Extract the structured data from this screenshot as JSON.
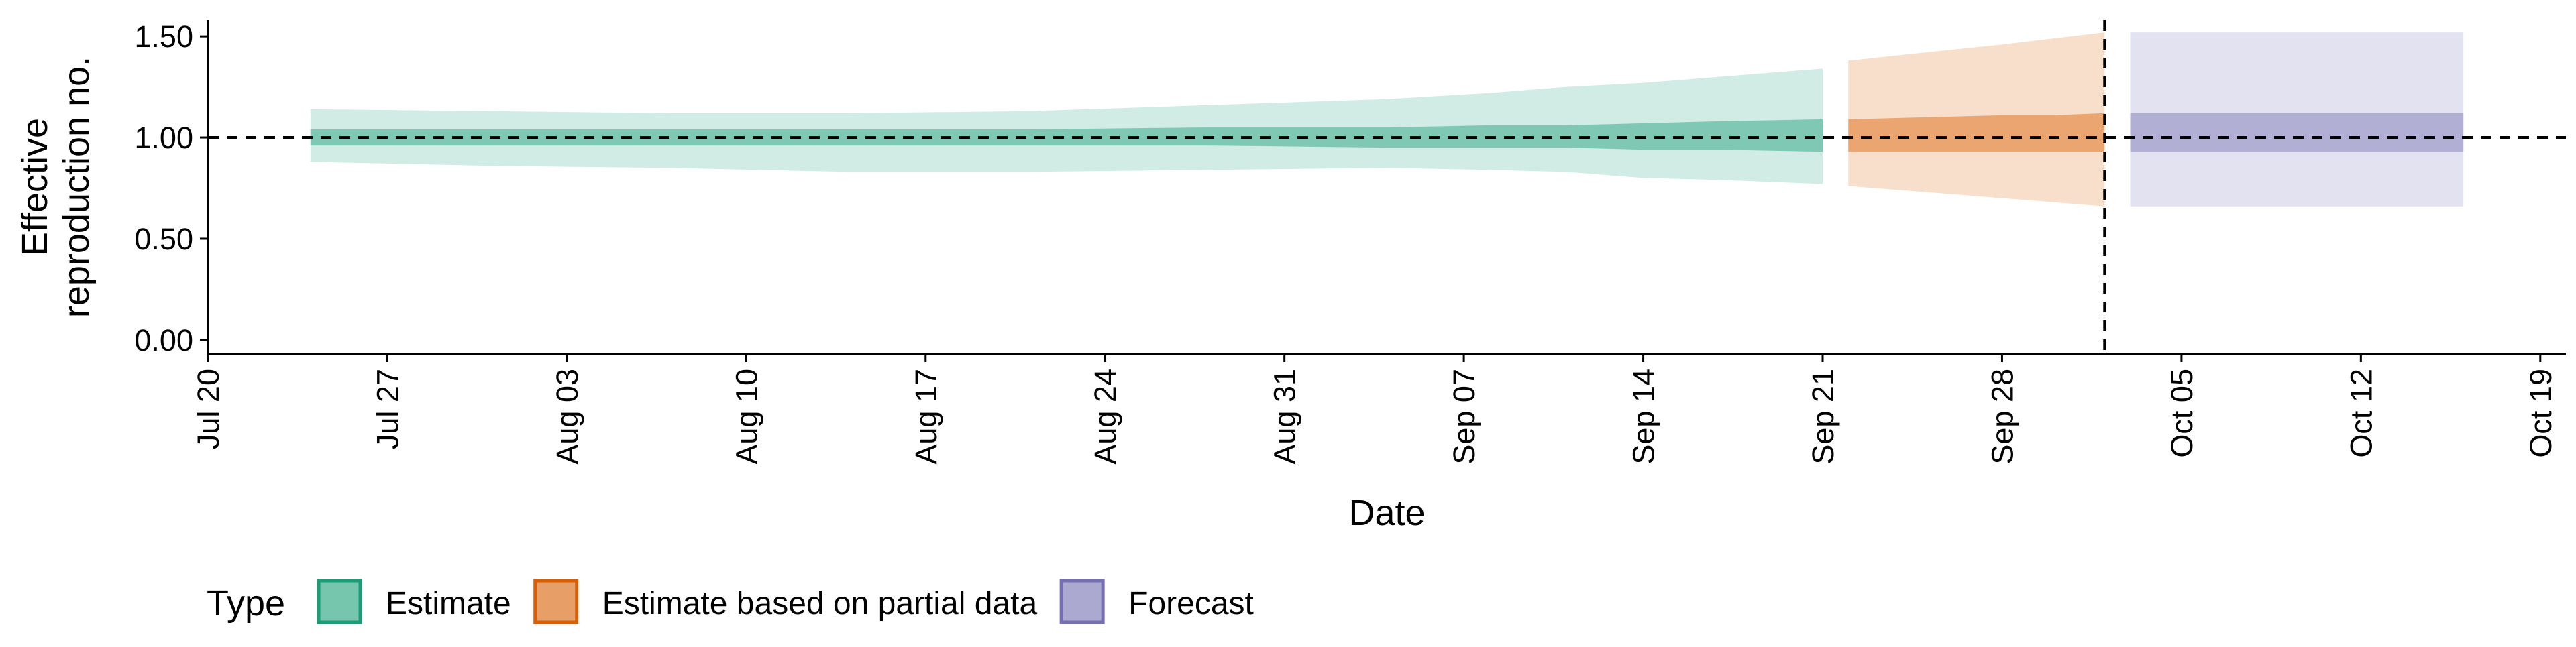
{
  "chart_data": {
    "type": "area",
    "title": "",
    "xlabel": "Date",
    "ylabel_lines": [
      "Effective",
      "reproduction no."
    ],
    "legend_title": "Type",
    "legend_position": "bottom-left",
    "grid": false,
    "x_ticks": [
      "2020-07-20",
      "2020-07-27",
      "2020-08-03",
      "2020-08-10",
      "2020-08-17",
      "2020-08-24",
      "2020-08-31",
      "2020-09-07",
      "2020-09-14",
      "2020-09-21",
      "2020-09-28",
      "2020-10-05",
      "2020-10-12",
      "2020-10-19"
    ],
    "x_tick_labels": [
      "Jul 20",
      "Jul 27",
      "Aug 03",
      "Aug 10",
      "Aug 17",
      "Aug 24",
      "Aug 31",
      "Sep 07",
      "Sep 14",
      "Sep 21",
      "Sep 28",
      "Oct 05",
      "Oct 12",
      "Oct 19"
    ],
    "xlim": [
      "2020-07-20",
      "2020-10-20"
    ],
    "y_ticks": [
      0,
      0.5,
      1.0,
      1.5
    ],
    "y_tick_labels": [
      "0.00",
      "0.50",
      "1.00",
      "1.50"
    ],
    "ylim": [
      -0.07,
      1.58
    ],
    "reference_hline": 1.0,
    "reference_vline": "2020-10-02",
    "colors": {
      "Estimate": "#1B9E77",
      "Estimate based on partial data": "#D95F02",
      "Forecast": "#7570B3"
    },
    "series": [
      {
        "name": "Estimate",
        "x": [
          "2020-07-24",
          "2020-07-31",
          "2020-08-07",
          "2020-08-14",
          "2020-08-21",
          "2020-08-28",
          "2020-09-04",
          "2020-09-08",
          "2020-09-11",
          "2020-09-14",
          "2020-09-17",
          "2020-09-21"
        ],
        "median": [
          1.0,
          1.0,
          1.0,
          1.0,
          1.0,
          1.0,
          1.0,
          1.0,
          1.0,
          1.0,
          1.0,
          1.0
        ],
        "lower_50": [
          0.96,
          0.96,
          0.96,
          0.96,
          0.96,
          0.96,
          0.95,
          0.95,
          0.95,
          0.94,
          0.94,
          0.93
        ],
        "upper_50": [
          1.04,
          1.04,
          1.04,
          1.04,
          1.04,
          1.05,
          1.05,
          1.06,
          1.06,
          1.07,
          1.08,
          1.09
        ],
        "lower_90": [
          0.88,
          0.86,
          0.85,
          0.83,
          0.83,
          0.84,
          0.85,
          0.84,
          0.83,
          0.8,
          0.79,
          0.77
        ],
        "upper_90": [
          1.14,
          1.13,
          1.12,
          1.12,
          1.13,
          1.16,
          1.19,
          1.22,
          1.25,
          1.27,
          1.3,
          1.34
        ]
      },
      {
        "name": "Estimate based on partial data",
        "x": [
          "2020-09-22",
          "2020-09-25",
          "2020-09-28",
          "2020-09-30",
          "2020-10-02"
        ],
        "median": [
          1.0,
          1.0,
          1.0,
          1.0,
          1.0
        ],
        "lower_50": [
          0.93,
          0.93,
          0.93,
          0.93,
          0.93
        ],
        "upper_50": [
          1.09,
          1.1,
          1.11,
          1.11,
          1.12
        ],
        "lower_90": [
          0.76,
          0.73,
          0.7,
          0.68,
          0.66
        ],
        "upper_90": [
          1.38,
          1.42,
          1.46,
          1.49,
          1.52
        ]
      },
      {
        "name": "Forecast",
        "x": [
          "2020-10-03",
          "2020-10-16"
        ],
        "median": [
          1.0,
          1.0
        ],
        "lower_50": [
          0.93,
          0.93
        ],
        "upper_50": [
          1.12,
          1.12
        ],
        "lower_90": [
          0.66,
          0.66
        ],
        "upper_90": [
          1.52,
          1.52
        ]
      }
    ]
  }
}
